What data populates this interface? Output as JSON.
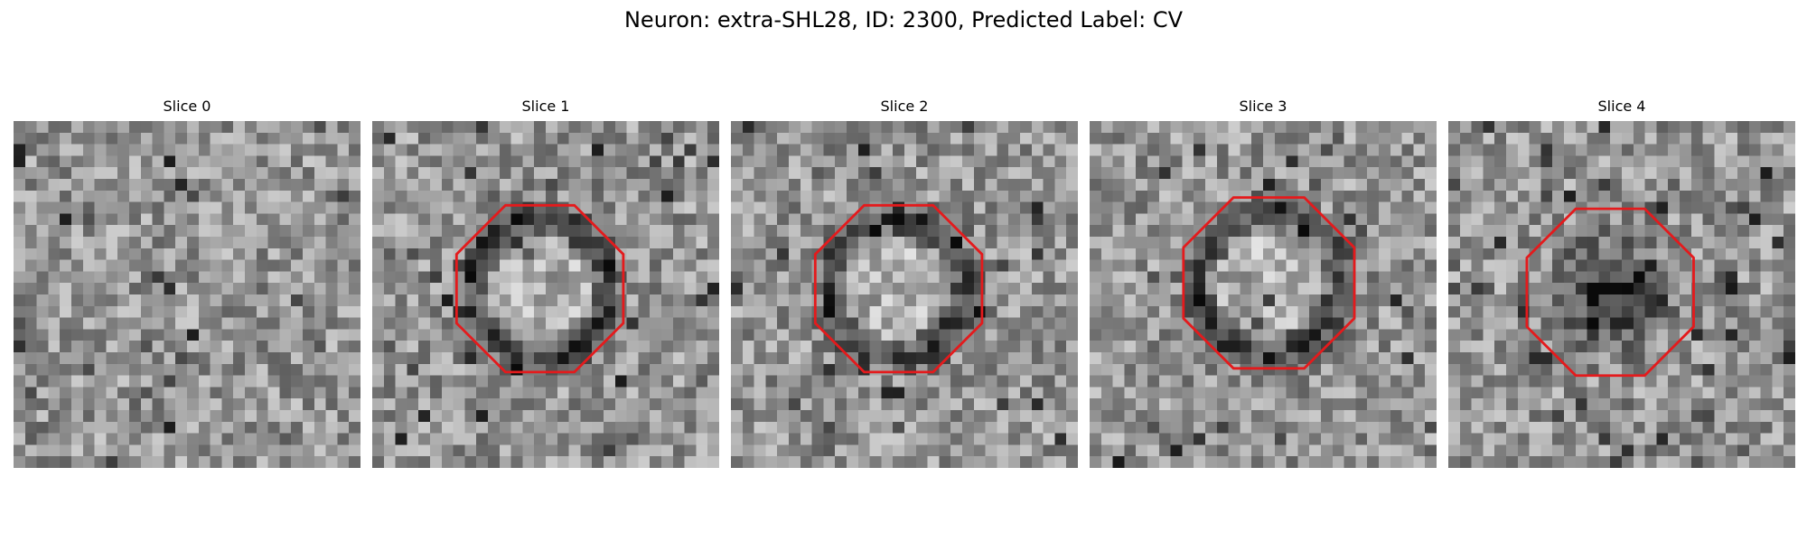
{
  "figure": {
    "title": "Neuron: extra-SHL28, ID: 2300, Predicted Label: CV",
    "outline_color": "#e41a1c"
  },
  "panels": [
    {
      "title": "Slice 0",
      "outline": false,
      "dark_ring": false,
      "dark_blob": false,
      "seed": 11
    },
    {
      "title": "Slice 1",
      "outline": true,
      "dark_ring": true,
      "dark_blob": false,
      "seed": 23
    },
    {
      "title": "Slice 2",
      "outline": true,
      "dark_ring": true,
      "dark_blob": false,
      "seed": 37
    },
    {
      "title": "Slice 3",
      "outline": true,
      "dark_ring": true,
      "dark_blob": false,
      "seed": 51
    },
    {
      "title": "Slice 4",
      "outline": true,
      "dark_ring": false,
      "dark_blob": true,
      "seed": 67
    }
  ]
}
